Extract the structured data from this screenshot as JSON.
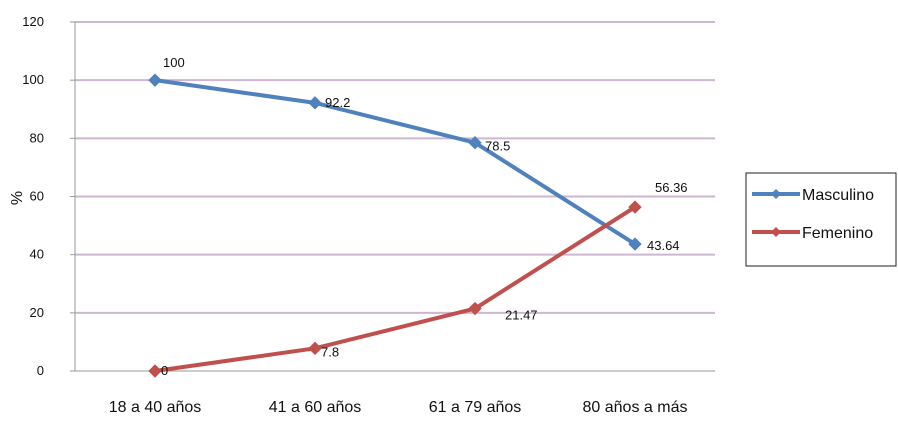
{
  "chart_data": {
    "type": "line",
    "title": "",
    "xlabel": "",
    "ylabel": "%",
    "ylim": [
      0,
      120
    ],
    "yticks": [
      0,
      20,
      40,
      60,
      80,
      100,
      120
    ],
    "grid": true,
    "legend_position": "right",
    "categories": [
      "18 a 40 años",
      "41 a 60 años",
      "61 a 79 años",
      "80 años a más"
    ],
    "series": [
      {
        "name": "Masculino",
        "values": [
          100,
          92.2,
          78.5,
          43.64
        ],
        "labels": [
          "100",
          "92.2",
          "78.5",
          "43.64"
        ],
        "color": "#4f81bd"
      },
      {
        "name": "Femenino",
        "values": [
          0,
          7.8,
          21.47,
          56.36
        ],
        "labels": [
          "0",
          "7.8",
          "21.47",
          "56.36"
        ],
        "color": "#c0504d"
      }
    ],
    "grid_color": "#cdb6d1",
    "axis_color": "#9a9a9a"
  }
}
